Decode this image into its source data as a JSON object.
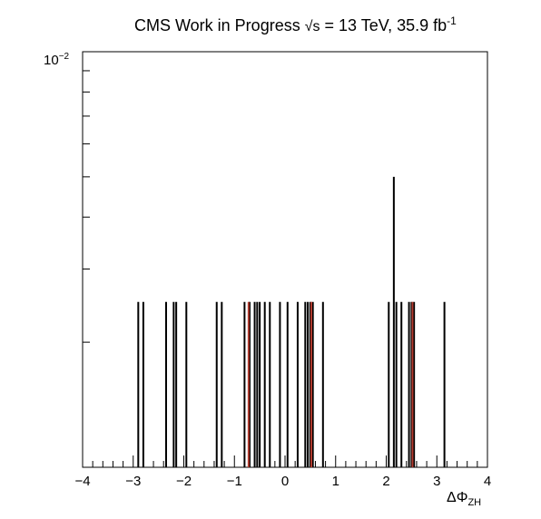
{
  "title": {
    "main": "CMS Work in Progress",
    "energy_sqrt": "√s",
    "energy_rest": " = 13 TeV, 35.9 fb",
    "lumi_exp": "-1"
  },
  "xlabel": {
    "main": "ΔΦ",
    "sub": "ZH"
  },
  "ytick_top": {
    "base": "10",
    "exp": "−2"
  },
  "chart_data": {
    "type": "bar",
    "title": "CMS Work in Progress √s = 13 TeV, 35.9 fb-1",
    "xlabel": "ΔΦ_ZH",
    "ylabel": "",
    "xlim": [
      -4,
      4
    ],
    "ylim": [
      0.001,
      0.01
    ],
    "yscale": "log",
    "grid": false,
    "x_tick_labels": [
      "−4",
      "−3",
      "−2",
      "−1",
      "0",
      "1",
      "2",
      "3",
      "4"
    ],
    "x_ticks": [
      -4,
      -3,
      -2,
      -1,
      0,
      1,
      2,
      3,
      4
    ],
    "y_tick_labels": [
      "10^-2"
    ],
    "series": [
      {
        "color": "#000000",
        "x": [
          -2.9,
          -2.8,
          -2.35,
          -2.2,
          -2.15,
          -1.95,
          -1.35,
          -1.25,
          -0.8,
          -0.7,
          -0.6,
          -0.55,
          -0.5,
          -0.4,
          -0.3,
          -0.1,
          0.05,
          0.25,
          0.4,
          0.45,
          0.5,
          0.55,
          0.75,
          2.05,
          2.15,
          2.2,
          2.3,
          2.45,
          2.5,
          2.55,
          3.15
        ],
        "values": [
          0.0025,
          0.0025,
          0.0025,
          0.0025,
          0.0025,
          0.0025,
          0.0025,
          0.0025,
          0.0025,
          0.0025,
          0.0025,
          0.0025,
          0.0025,
          0.0025,
          0.0025,
          0.0025,
          0.0025,
          0.0025,
          0.0025,
          0.0025,
          0.0025,
          0.0025,
          0.0025,
          0.0025,
          0.005,
          0.0025,
          0.0025,
          0.0025,
          0.0025,
          0.0025,
          0.0025
        ]
      },
      {
        "color": "#b03a2e",
        "x": [
          -0.72,
          0.52,
          2.52
        ],
        "values": [
          0.0025,
          0.0025,
          0.0025
        ]
      }
    ]
  }
}
